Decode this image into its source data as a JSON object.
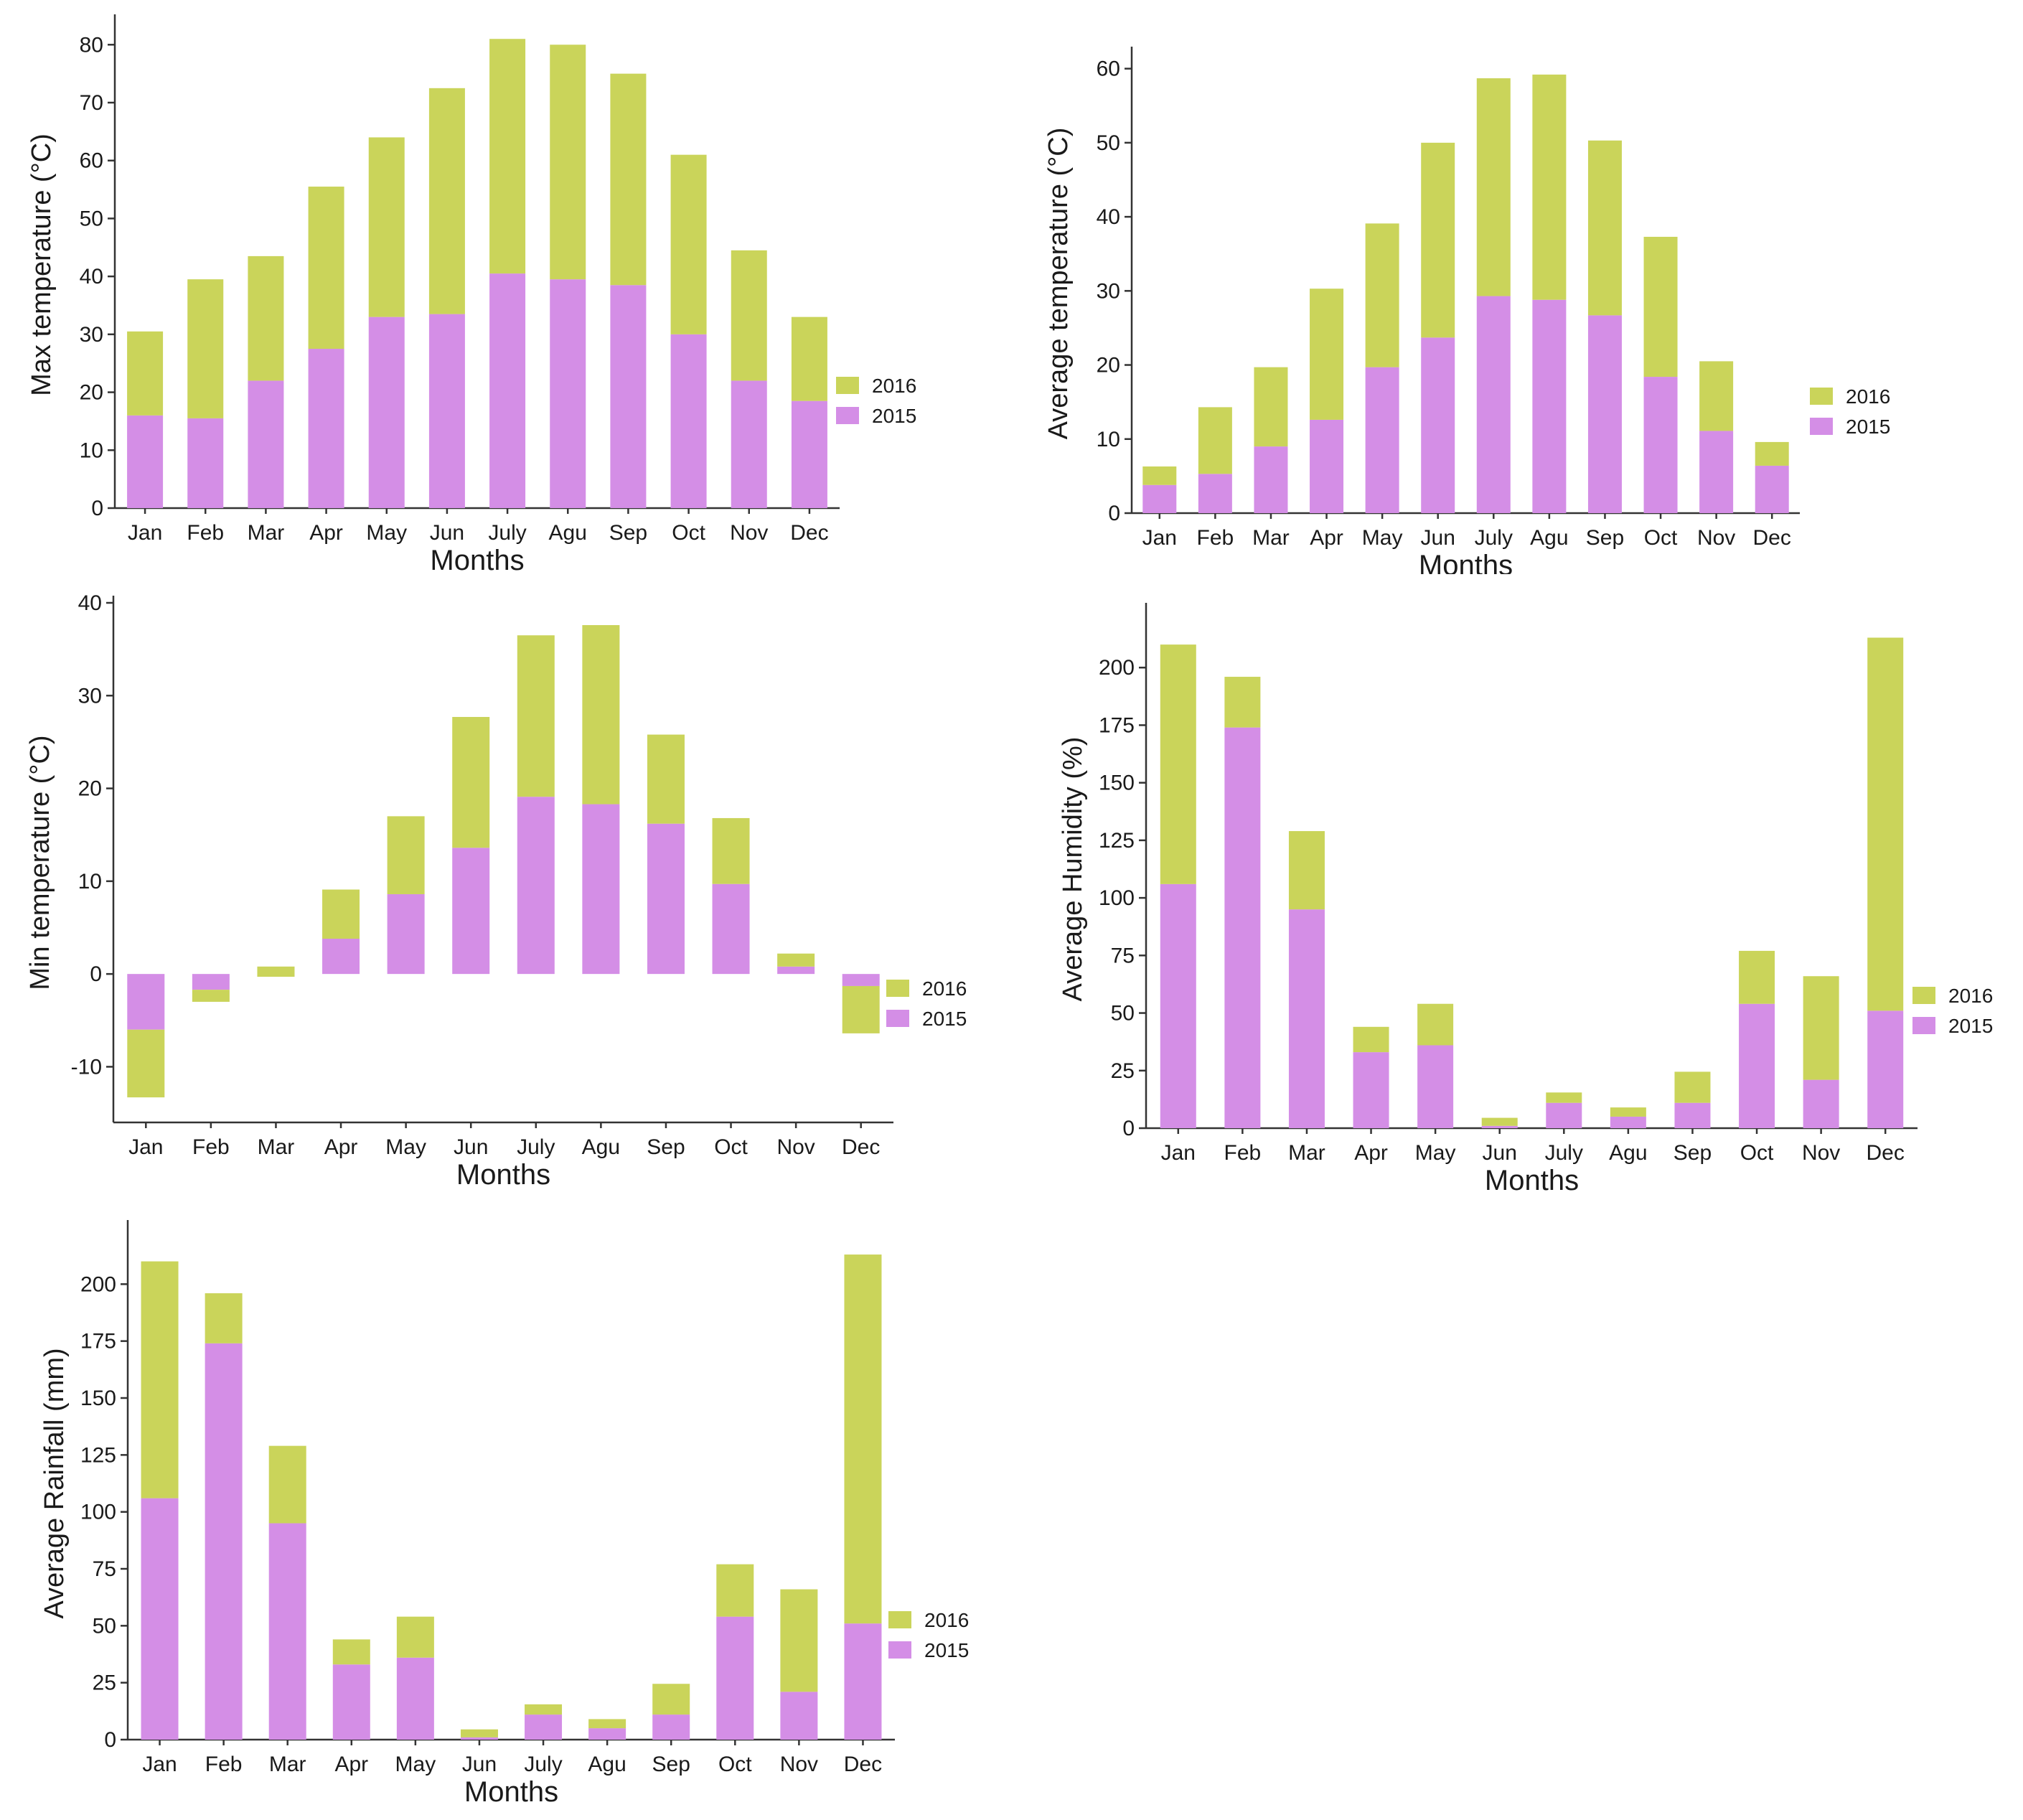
{
  "colors": {
    "s2016": "#cad45a",
    "s2015": "#d48ee6",
    "axis": "#333333"
  },
  "chart_data": [
    {
      "id": "max-temp",
      "type": "bar",
      "stacked": true,
      "ylabel": "Max temperature (°C)",
      "xlabel": "Months",
      "categories": [
        "Jan",
        "Feb",
        "Mar",
        "Apr",
        "May",
        "Jun",
        "July",
        "Agu",
        "Sep",
        "Oct",
        "Nov",
        "Dec"
      ],
      "ylim": [
        0,
        84
      ],
      "yticks": [
        0,
        10,
        20,
        30,
        40,
        50,
        60,
        70,
        80
      ],
      "legend_order": [
        "2016",
        "2015"
      ],
      "series": [
        {
          "name": "2015",
          "values": [
            16,
            15.5,
            22,
            27.5,
            33,
            33.5,
            40.5,
            39.5,
            38.5,
            30,
            22,
            18.5
          ]
        },
        {
          "name": "2016",
          "values": [
            14.5,
            24,
            21.5,
            28,
            31,
            39,
            40.5,
            40.5,
            36.5,
            31,
            22.5,
            14.5
          ]
        }
      ]
    },
    {
      "id": "avg-temp",
      "type": "bar",
      "stacked": true,
      "ylabel": "Average temperature (°C)",
      "xlabel": "Months",
      "categories": [
        "Jan",
        "Feb",
        "Mar",
        "Apr",
        "May",
        "Jun",
        "July",
        "Agu",
        "Sep",
        "Oct",
        "Nov",
        "Dec"
      ],
      "ylim": [
        0,
        62
      ],
      "yticks": [
        0,
        10,
        20,
        30,
        40,
        50,
        60
      ],
      "legend_order": [
        "2016",
        "2015"
      ],
      "series": [
        {
          "name": "2015",
          "values": [
            3.8,
            5.3,
            9,
            12.6,
            19.7,
            23.7,
            29.3,
            28.8,
            26.7,
            18.4,
            11.1,
            6.4
          ]
        },
        {
          "name": "2016",
          "values": [
            2.5,
            9,
            10.7,
            17.7,
            19.4,
            26.3,
            29.4,
            30.4,
            23.6,
            18.9,
            9.4,
            3.2
          ]
        }
      ]
    },
    {
      "id": "min-temp",
      "type": "bar",
      "stacked": true,
      "ylabel": "Min temperature (°C)",
      "xlabel": "Months",
      "categories": [
        "Jan",
        "Feb",
        "Mar",
        "Apr",
        "May",
        "Jun",
        "July",
        "Agu",
        "Sep",
        "Oct",
        "Nov",
        "Dec"
      ],
      "ylim": [
        -16,
        40
      ],
      "yticks": [
        -10,
        0,
        10,
        20,
        30,
        40
      ],
      "legend_order": [
        "2016",
        "2015"
      ],
      "series": [
        {
          "name": "2015",
          "values": [
            -6,
            -1.7,
            0,
            3.8,
            8.6,
            13.6,
            19.1,
            18.3,
            16.2,
            9.7,
            0.8,
            -1.3
          ]
        },
        {
          "name": "2016",
          "values": [
            -7.3,
            -1.3,
            0.8,
            5.3,
            8.4,
            14.1,
            17.4,
            19.3,
            9.6,
            7.1,
            1.4,
            -5.1
          ]
        }
      ],
      "notes": "Mar 2016 segment spans roughly -0.3 to 0.8"
    },
    {
      "id": "avg-humidity",
      "type": "bar",
      "stacked": true,
      "ylabel": "Average Humidity (%)",
      "xlabel": "Months",
      "categories": [
        "Jan",
        "Feb",
        "Mar",
        "Apr",
        "May",
        "Jun",
        "July",
        "Agu",
        "Sep",
        "Oct",
        "Nov",
        "Dec"
      ],
      "ylim": [
        0,
        225
      ],
      "yticks": [
        0,
        25,
        50,
        75,
        100,
        125,
        150,
        175,
        200
      ],
      "legend_order": [
        "2016",
        "2015"
      ],
      "series": [
        {
          "name": "2015",
          "values": [
            106,
            174,
            95,
            33,
            36,
            1,
            11,
            5,
            11,
            54,
            21,
            51
          ]
        },
        {
          "name": "2016",
          "values": [
            104,
            22,
            34,
            11,
            18,
            3.5,
            4.5,
            4,
            13.5,
            23,
            45,
            162
          ]
        }
      ]
    },
    {
      "id": "avg-rainfall",
      "type": "bar",
      "stacked": true,
      "ylabel": "Average Rainfall (mm)",
      "xlabel": "Months",
      "categories": [
        "Jan",
        "Feb",
        "Mar",
        "Apr",
        "May",
        "Jun",
        "July",
        "Agu",
        "Sep",
        "Oct",
        "Nov",
        "Dec"
      ],
      "ylim": [
        0,
        225
      ],
      "yticks": [
        0,
        25,
        50,
        75,
        100,
        125,
        150,
        175,
        200
      ],
      "legend_order": [
        "2016",
        "2015"
      ],
      "series": [
        {
          "name": "2015",
          "values": [
            106,
            174,
            95,
            33,
            36,
            1,
            11,
            5,
            11,
            54,
            21,
            51
          ]
        },
        {
          "name": "2016",
          "values": [
            104,
            22,
            34,
            11,
            18,
            3.5,
            4.5,
            4,
            13.5,
            23,
            45,
            162
          ]
        }
      ]
    }
  ]
}
